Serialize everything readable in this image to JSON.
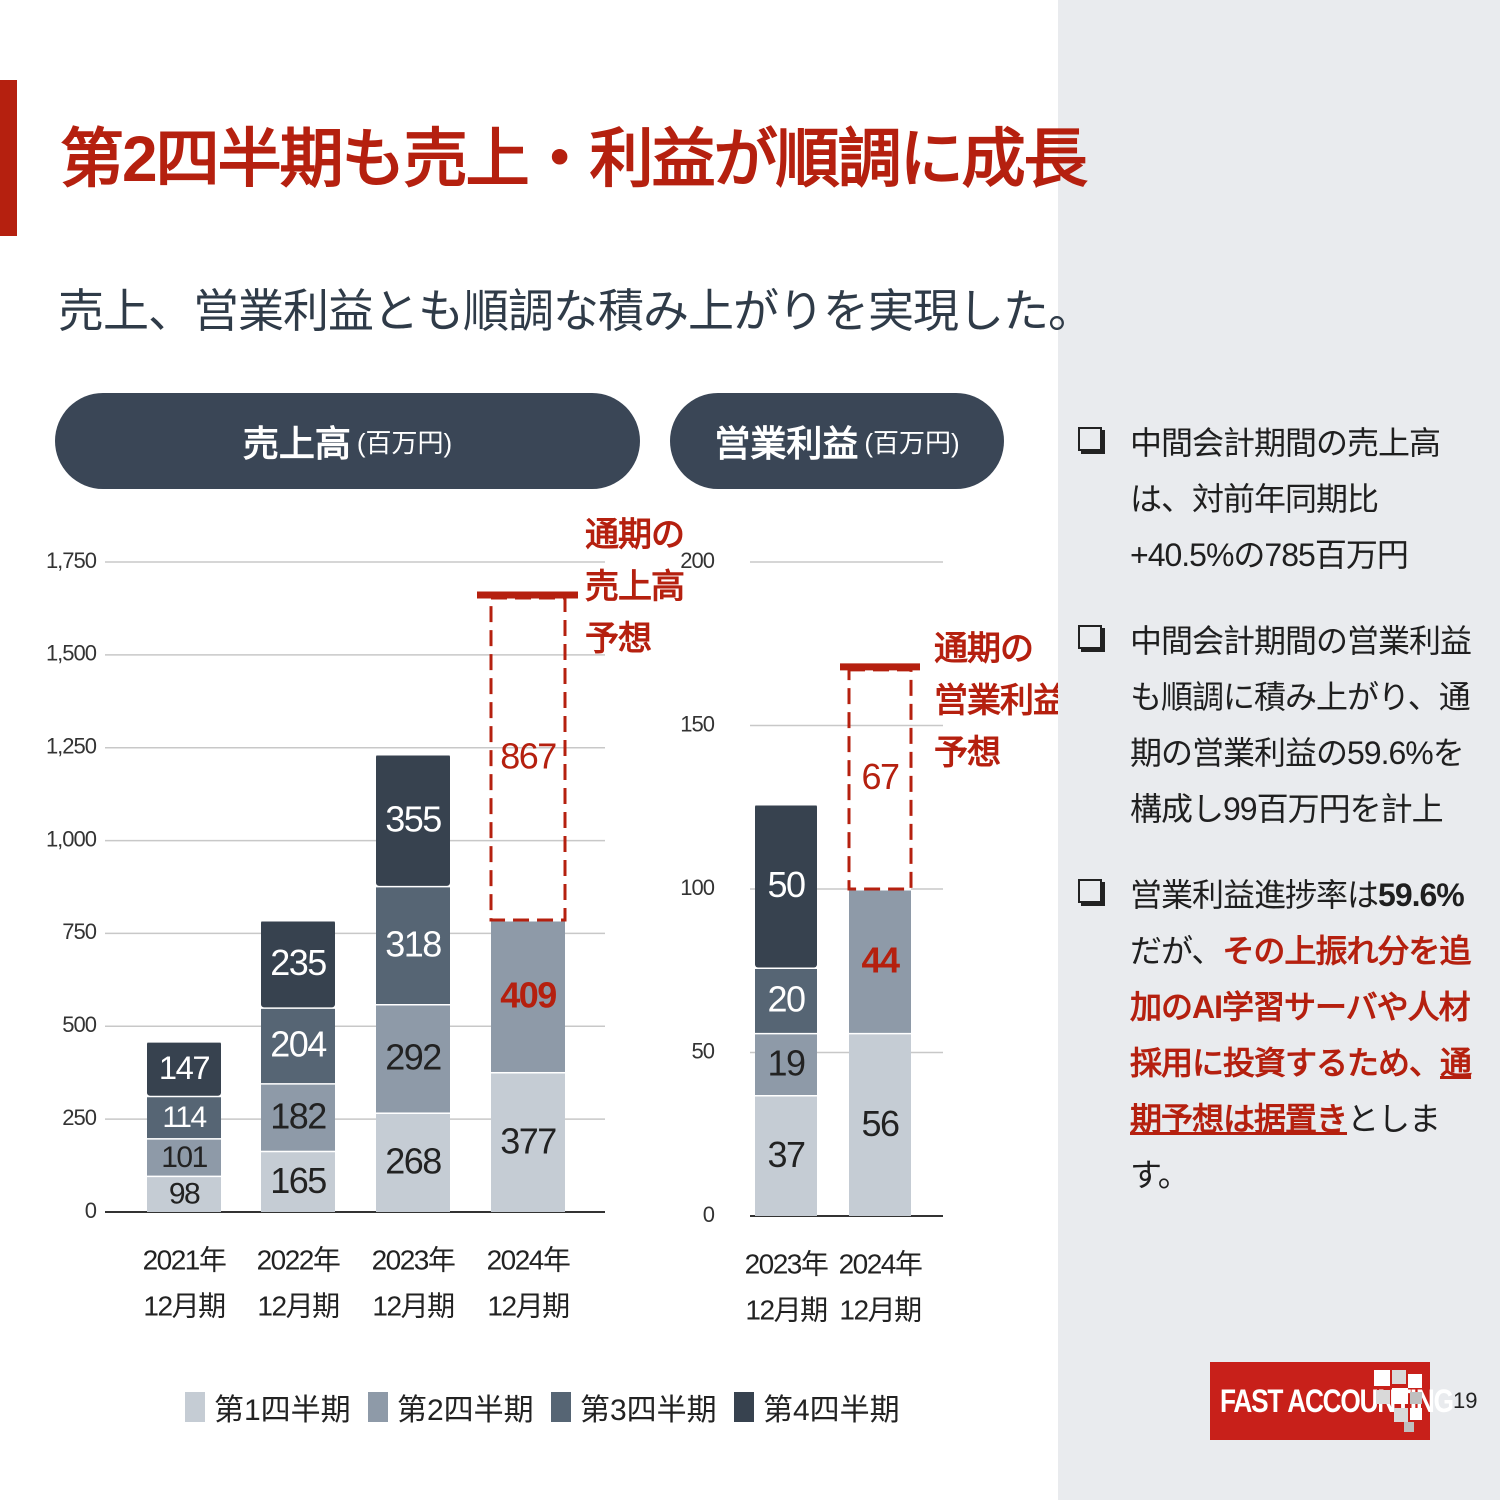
{
  "slide": {
    "title": "第2四半期も売上・利益が順調に成長",
    "subtitle": "売上、営業利益とも順調な積み上がりを実現した。",
    "page_number": "19"
  },
  "colors": {
    "accent_red": "#b5200f",
    "pill_dark": "#3a4656",
    "q1": "#c5ccd4",
    "q2": "#8e9aa8",
    "q3": "#566574",
    "q4": "#37424f",
    "side_panel": "#e9ebee"
  },
  "panels": {
    "sales": {
      "label": "売上高",
      "unit": "(百万円)"
    },
    "profit": {
      "label": "営業利益",
      "unit": "(百万円)"
    }
  },
  "legend": [
    "第1四半期",
    "第2四半期",
    "第3四半期",
    "第4四半期"
  ],
  "chart_data": [
    {
      "type": "bar",
      "stacked": true,
      "title": "売上高",
      "unit": "(百万円)",
      "categories": [
        [
          "2021年",
          "12月期"
        ],
        [
          "2022年",
          "12月期"
        ],
        [
          "2023年",
          "12月期"
        ],
        [
          "2024年",
          "12月期"
        ]
      ],
      "series": [
        {
          "name": "第1四半期",
          "values": [
            98,
            165,
            268,
            377
          ]
        },
        {
          "name": "第2四半期",
          "values": [
            101,
            182,
            292,
            409
          ]
        },
        {
          "name": "第3四半期",
          "values": [
            114,
            204,
            318,
            null
          ]
        },
        {
          "name": "第4四半期",
          "values": [
            147,
            235,
            355,
            null
          ]
        }
      ],
      "forecast": {
        "category_index": 3,
        "remaining": 867,
        "label": [
          "通期の",
          "売上高",
          "予想"
        ]
      },
      "ylim": [
        0,
        1750
      ],
      "yticks": [
        0,
        250,
        500,
        750,
        1000,
        1250,
        1500,
        1750
      ],
      "ytick_labels": [
        "0",
        "250",
        "500",
        "750",
        "1,000",
        "1,250",
        "1,500",
        "1,750"
      ],
      "grid": true
    },
    {
      "type": "bar",
      "stacked": true,
      "title": "営業利益",
      "unit": "(百万円)",
      "categories": [
        [
          "2023年",
          "12月期"
        ],
        [
          "2024年",
          "12月期"
        ]
      ],
      "series": [
        {
          "name": "第1四半期",
          "values": [
            37,
            56
          ]
        },
        {
          "name": "第2四半期",
          "values": [
            19,
            44
          ]
        },
        {
          "name": "第3四半期",
          "values": [
            20,
            null
          ]
        },
        {
          "name": "第4四半期",
          "values": [
            50,
            null
          ]
        }
      ],
      "forecast": {
        "category_index": 1,
        "remaining": 67,
        "label": [
          "通期の",
          "営業利益",
          "予想"
        ]
      },
      "ylim": [
        0,
        200
      ],
      "yticks": [
        0,
        50,
        100,
        150,
        200
      ],
      "ytick_labels": [
        "0",
        "50",
        "100",
        "150",
        "200"
      ],
      "grid": true
    }
  ],
  "bullets": {
    "b1": {
      "text": "中間会計期間の売上高は、対前年同期比+40.5%の785百万円"
    },
    "b2": {
      "text": "中間会計期間の営業利益も順調に積み上がり、通期の営業利益の59.6%を構成し99百万円を計上"
    },
    "b3": {
      "t1": "営業利益進捗率は",
      "t2": "59.6%",
      "t3": "だが、",
      "t4": "その上振れ分を追加のAI学習サーバや人材採用に投資するため、",
      "t5": "通期予想は据置き",
      "t6": "とします。"
    }
  },
  "logo": {
    "text": "FAST ACCOUNTING"
  }
}
